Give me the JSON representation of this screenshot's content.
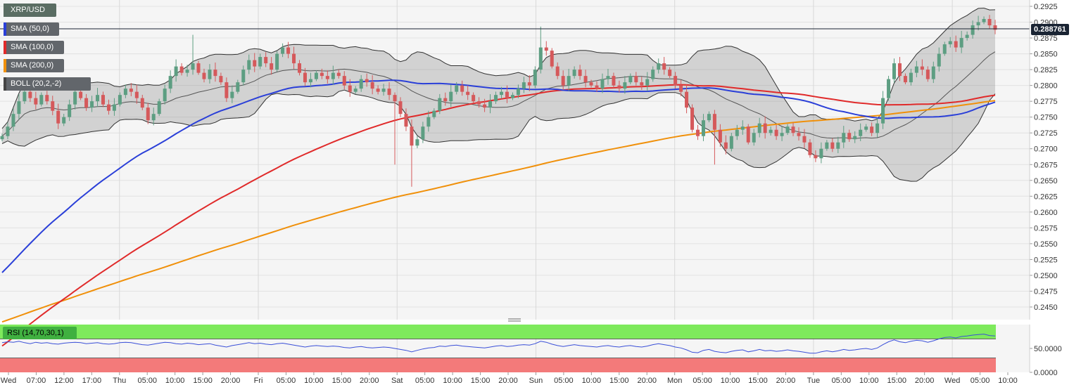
{
  "instrument": "XRP/USD",
  "legend": [
    {
      "label": "XRP/USD",
      "color": "#5a6d63"
    },
    {
      "label": "SMA (50,0)",
      "color": "#2a3fd8"
    },
    {
      "label": "SMA (100,0)",
      "color": "#e02a2a"
    },
    {
      "label": "SMA (200,0)",
      "color": "#f0900a"
    },
    {
      "label": "BOLL (20,2,-2)",
      "color": "#444444"
    }
  ],
  "rsi_label": "RSI (14,70,30,1)",
  "last_price": "0.288761",
  "x_tick_labels": [
    "Wed",
    "07:00",
    "12:00",
    "17:00",
    "Thu",
    "05:00",
    "10:00",
    "15:00",
    "20:00",
    "Fri",
    "05:00",
    "10:00",
    "15:00",
    "20:00",
    "Sat",
    "05:00",
    "10:00",
    "15:00",
    "20:00",
    "Sun",
    "05:00",
    "10:00",
    "15:00",
    "20:00",
    "Mon",
    "05:00",
    "10:00",
    "15:00",
    "20:00",
    "Tue",
    "05:00",
    "10:00",
    "15:00",
    "20:00",
    "Wed",
    "05:00",
    "10:00"
  ],
  "y_tick_labels": [
    "0.2925",
    "0.2900",
    "0.2875",
    "0.2850",
    "0.2825",
    "0.2800",
    "0.2775",
    "0.2750",
    "0.2725",
    "0.2700",
    "0.2675",
    "0.2650",
    "0.2625",
    "0.2600",
    "0.2575",
    "0.2550",
    "0.2525",
    "0.2500",
    "0.2475",
    "0.2450"
  ],
  "rsi_tick_labels": [
    "50.0000",
    "0.0000"
  ],
  "chart_data": [
    {
      "type": "candlestick",
      "title": "XRP/USD",
      "ylim": [
        0.243,
        0.2935
      ],
      "grid": true,
      "current_price": 0.288761,
      "x_axis_labels": [
        "Wed",
        "07:00",
        "12:00",
        "17:00",
        "Thu",
        "05:00",
        "10:00",
        "15:00",
        "20:00",
        "Fri",
        "05:00",
        "10:00",
        "15:00",
        "20:00",
        "Sat",
        "05:00",
        "10:00",
        "15:00",
        "20:00",
        "Sun",
        "05:00",
        "10:00",
        "15:00",
        "20:00",
        "Mon",
        "05:00",
        "10:00",
        "15:00",
        "20:00",
        "Tue",
        "05:00",
        "10:00",
        "15:00",
        "20:00",
        "Wed",
        "05:00",
        "10:00"
      ],
      "y_ticks": [
        0.2925,
        0.29,
        0.2875,
        0.285,
        0.2825,
        0.28,
        0.2775,
        0.275,
        0.2725,
        0.27,
        0.2675,
        0.265,
        0.2625,
        0.26,
        0.2575,
        0.255,
        0.2525,
        0.25,
        0.2475,
        0.245
      ],
      "close": [
        0.272,
        0.2735,
        0.2755,
        0.2775,
        0.279,
        0.278,
        0.277,
        0.2785,
        0.2775,
        0.276,
        0.274,
        0.275,
        0.277,
        0.279,
        0.278,
        0.2765,
        0.2775,
        0.2785,
        0.277,
        0.276,
        0.277,
        0.2785,
        0.2795,
        0.279,
        0.278,
        0.2765,
        0.2745,
        0.2755,
        0.2775,
        0.2795,
        0.2815,
        0.283,
        0.282,
        0.2825,
        0.2835,
        0.282,
        0.281,
        0.2825,
        0.2815,
        0.2805,
        0.278,
        0.279,
        0.2805,
        0.2825,
        0.284,
        0.283,
        0.2845,
        0.2835,
        0.2825,
        0.285,
        0.286,
        0.285,
        0.2835,
        0.282,
        0.2805,
        0.281,
        0.282,
        0.2815,
        0.281,
        0.282,
        0.2815,
        0.28,
        0.279,
        0.2795,
        0.281,
        0.2805,
        0.2795,
        0.279,
        0.2795,
        0.2785,
        0.2775,
        0.2755,
        0.2735,
        0.2705,
        0.2715,
        0.2735,
        0.275,
        0.276,
        0.278,
        0.2775,
        0.279,
        0.28,
        0.279,
        0.2785,
        0.2775,
        0.277,
        0.2765,
        0.2775,
        0.2785,
        0.279,
        0.278,
        0.2785,
        0.2795,
        0.2805,
        0.28,
        0.2825,
        0.286,
        0.2855,
        0.283,
        0.2815,
        0.28,
        0.2815,
        0.2825,
        0.2815,
        0.2805,
        0.28,
        0.2795,
        0.281,
        0.2815,
        0.28,
        0.2795,
        0.2805,
        0.2815,
        0.2805,
        0.28,
        0.281,
        0.2825,
        0.2835,
        0.2825,
        0.2815,
        0.28,
        0.279,
        0.2765,
        0.273,
        0.272,
        0.2745,
        0.2755,
        0.273,
        0.271,
        0.27,
        0.272,
        0.273,
        0.2735,
        0.271,
        0.2725,
        0.274,
        0.2725,
        0.273,
        0.272,
        0.2725,
        0.2735,
        0.2725,
        0.272,
        0.271,
        0.269,
        0.2685,
        0.27,
        0.271,
        0.27,
        0.271,
        0.2725,
        0.2715,
        0.272,
        0.273,
        0.2735,
        0.2725,
        0.274,
        0.278,
        0.281,
        0.2835,
        0.2815,
        0.2805,
        0.282,
        0.283,
        0.2825,
        0.281,
        0.283,
        0.285,
        0.2865,
        0.287,
        0.286,
        0.2875,
        0.288,
        0.2895,
        0.29,
        0.2905,
        0.2895,
        0.2888
      ]
    },
    {
      "type": "line",
      "title": "RSI (14,70,30,1)",
      "y_ticks": [
        50.0,
        0.0
      ],
      "ylim": [
        0,
        100
      ],
      "bands": {
        "overbought": 70,
        "oversold": 30
      },
      "values": [
        62,
        64,
        63,
        65,
        62,
        60,
        63,
        61,
        62,
        60,
        59,
        61,
        62,
        63,
        62,
        60,
        61,
        62,
        60,
        59,
        60,
        62,
        63,
        62,
        60,
        58,
        57,
        59,
        61,
        63,
        62,
        60,
        59,
        61,
        60,
        58,
        59,
        60,
        57,
        55,
        53,
        56,
        58,
        60,
        62,
        60,
        61,
        59,
        58,
        60,
        61,
        59,
        57,
        55,
        53,
        55,
        56,
        55,
        54,
        55,
        54,
        52,
        51,
        53,
        54,
        52,
        51,
        52,
        53,
        52,
        50,
        48,
        46,
        43,
        46,
        49,
        51,
        52,
        55,
        54,
        56,
        57,
        55,
        54,
        53,
        52,
        51,
        53,
        55,
        56,
        54,
        55,
        57,
        58,
        57,
        60,
        65,
        63,
        59,
        56,
        54,
        56,
        58,
        56,
        55,
        54,
        53,
        55,
        56,
        54,
        53,
        55,
        56,
        54,
        53,
        55,
        58,
        60,
        58,
        56,
        53,
        51,
        47,
        42,
        41,
        46,
        48,
        44,
        42,
        41,
        44,
        46,
        47,
        43,
        45,
        48,
        45,
        46,
        44,
        45,
        47,
        45,
        44,
        42,
        40,
        40,
        43,
        45,
        43,
        45,
        48,
        46,
        47,
        49,
        50,
        48,
        51,
        58,
        64,
        68,
        64,
        62,
        65,
        67,
        66,
        63,
        66,
        70,
        73,
        74,
        72,
        75,
        76,
        78,
        79,
        80,
        77,
        76
      ]
    }
  ]
}
